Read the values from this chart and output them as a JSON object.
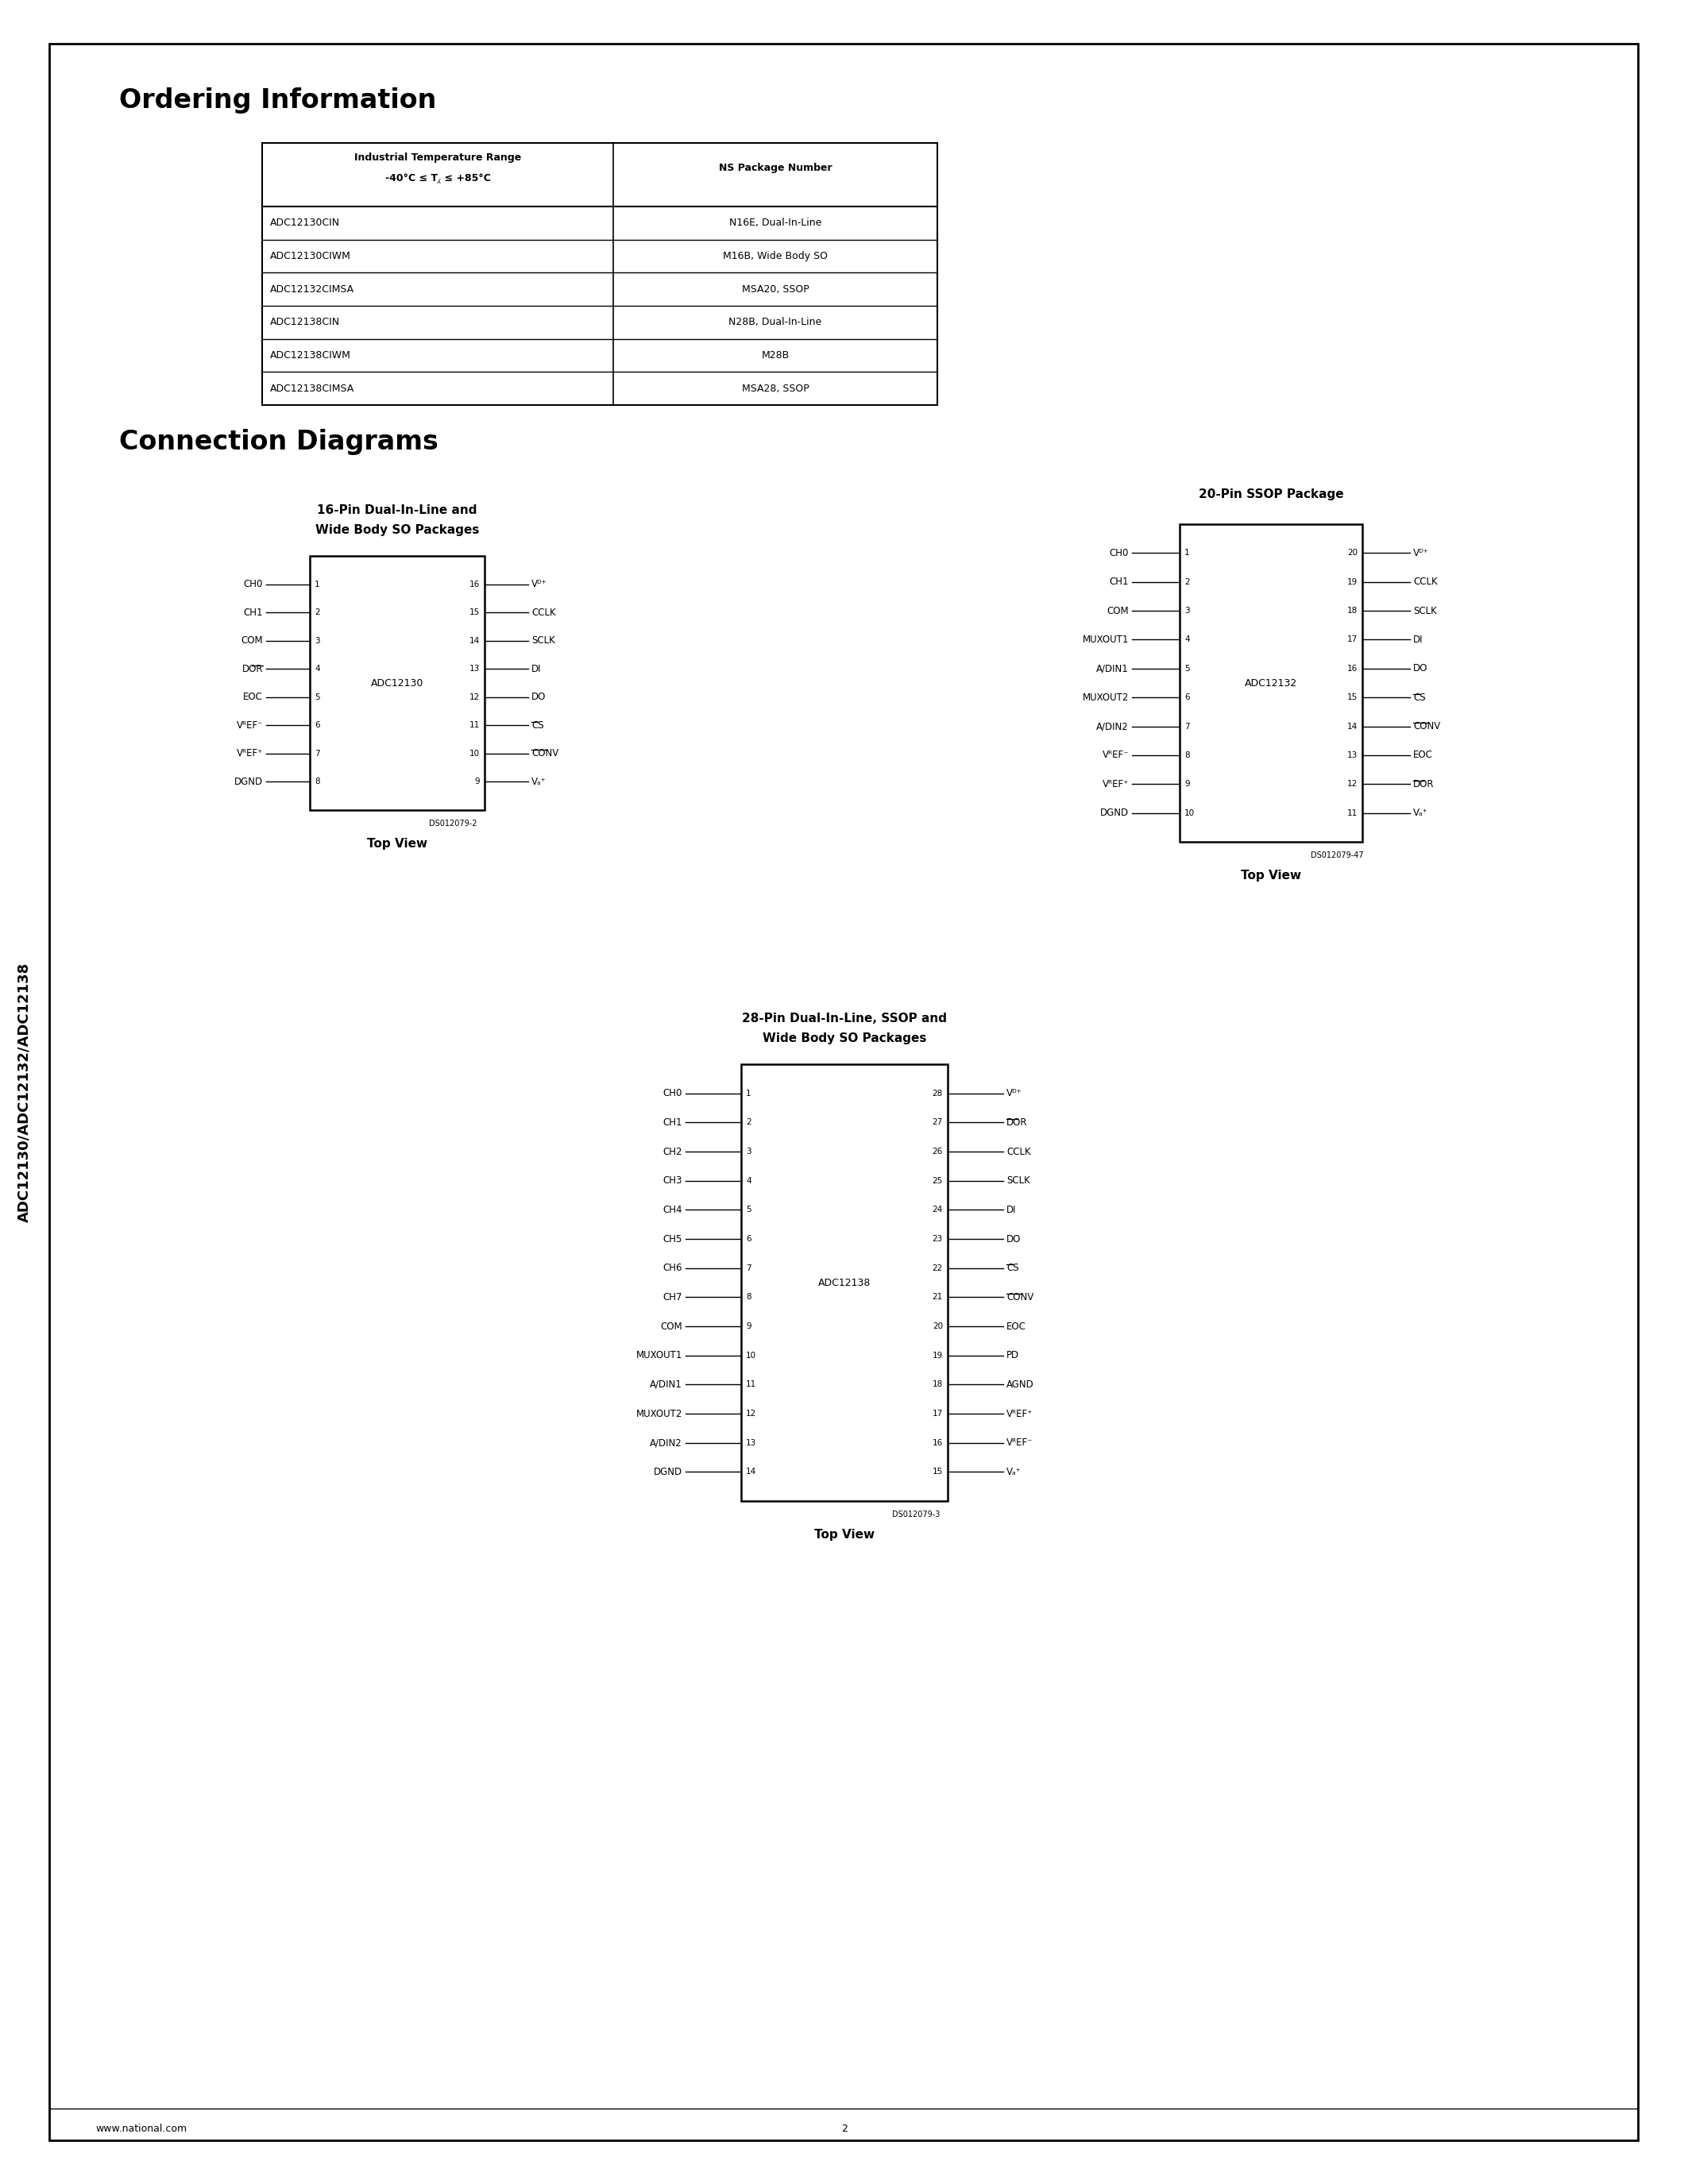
{
  "page_bg": "#ffffff",
  "title_ordering": "Ordering Information",
  "title_connection": "Connection Diagrams",
  "sidebar_text": "ADC12130/ADC12132/ADC12138",
  "table_header_col1_line1": "Industrial Temperature Range",
  "table_header_col1_line2": "-40°C ≤ T⁁ ≤ +85°C",
  "table_header_col2": "NS Package Number",
  "table_rows": [
    [
      "ADC12130CIN",
      "N16E, Dual-In-Line"
    ],
    [
      "ADC12130CIWM",
      "M16B, Wide Body SO"
    ],
    [
      "ADC12132CIMSA",
      "MSA20, SSOP"
    ],
    [
      "ADC12138CIN",
      "N28B, Dual-In-Line"
    ],
    [
      "ADC12138CIWM",
      "M28B"
    ],
    [
      "ADC12138CIMSA",
      "MSA28, SSOP"
    ]
  ],
  "diag1_title_line1": "16-Pin Dual-In-Line and",
  "diag1_title_line2": "Wide Body SO Packages",
  "diag1_chip_label": "ADC12130",
  "diag1_dso": "DS012079-2",
  "diag2_title": "20-Pin SSOP Package",
  "diag2_chip_label": "ADC12132",
  "diag2_dso": "DS012079-47",
  "diag3_title_line1": "28-Pin Dual-In-Line, SSOP and",
  "diag3_title_line2": "Wide Body SO Packages",
  "diag3_chip_label": "ADC12138",
  "diag3_dso": "DS012079-3",
  "footer_left": "www.national.com",
  "footer_center": "2"
}
